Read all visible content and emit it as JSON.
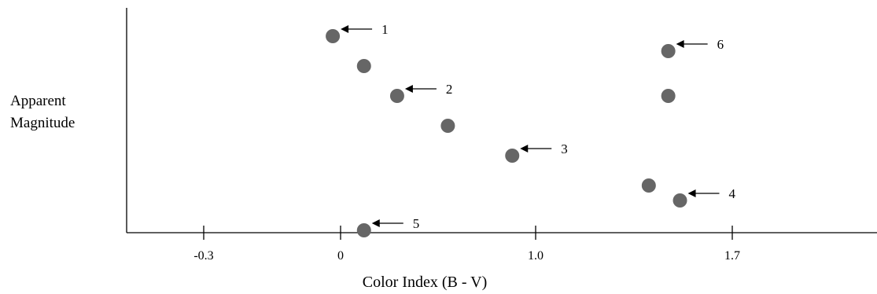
{
  "chart_data": {
    "type": "scatter",
    "xlabel": "Color Index  (B - V)",
    "ylabel": [
      "Apparent",
      "Magnitude"
    ],
    "x_ticks": [
      {
        "label": "-0.3",
        "value": -0.3
      },
      {
        "label": "0",
        "value": 0
      },
      {
        "label": "1.0",
        "value": 1.0
      },
      {
        "label": "1.7",
        "value": 1.7
      }
    ],
    "points": [
      {
        "x": -0.04,
        "y": 1.0,
        "label": "1"
      },
      {
        "x": 0.12,
        "y": 2.0,
        "label": null
      },
      {
        "x": 0.29,
        "y": 3.0,
        "label": "2"
      },
      {
        "x": 0.55,
        "y": 4.0,
        "label": null
      },
      {
        "x": 0.88,
        "y": 5.0,
        "label": "3"
      },
      {
        "x": 1.58,
        "y": 6.0,
        "label": null
      },
      {
        "x": 1.74,
        "y": 6.5,
        "label": "4"
      },
      {
        "x": 0.12,
        "y": 7.5,
        "label": "5"
      },
      {
        "x": 1.68,
        "y": 1.5,
        "label": "6"
      },
      {
        "x": 1.68,
        "y": 3.0,
        "label": null
      }
    ],
    "grid": false,
    "colors": {
      "point": "#666666",
      "axis": "#000000"
    }
  }
}
